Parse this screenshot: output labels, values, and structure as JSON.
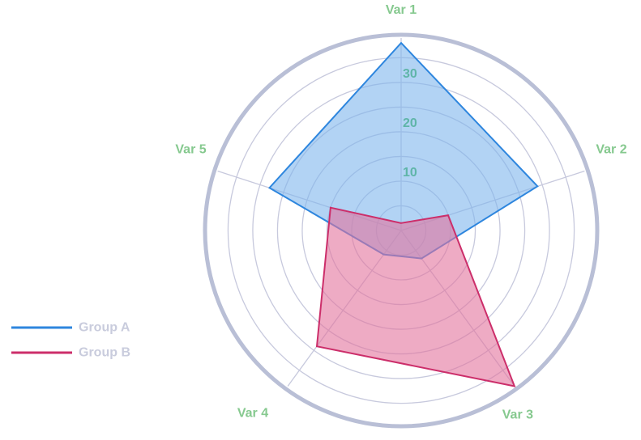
{
  "chart_data": {
    "type": "radar",
    "axes": [
      "Var 1",
      "Var 2",
      "Var 3",
      "Var 4",
      "Var 5"
    ],
    "rlim": [
      0,
      39
    ],
    "radial_ticks": [
      10,
      20,
      30
    ],
    "radial_tick_labels": [
      "10",
      "20",
      "30"
    ],
    "series": [
      {
        "name": "Group A",
        "values": [
          38,
          29,
          7,
          6,
          28
        ],
        "color": "#2e86de",
        "fill": "#7eb6ec"
      },
      {
        "name": "Group B",
        "values": [
          1.5,
          10,
          39,
          29,
          15
        ],
        "color": "#cc2e6a",
        "fill": "#e3739d"
      }
    ],
    "grid": true,
    "legend_position": "left",
    "colors": {
      "axis_label": "#86c98f",
      "tick_label": "#5fb5a8",
      "grid": "#c7c9dd",
      "outer_ring": "#b9bfd6",
      "legend_text": "#c9ccdd"
    }
  }
}
